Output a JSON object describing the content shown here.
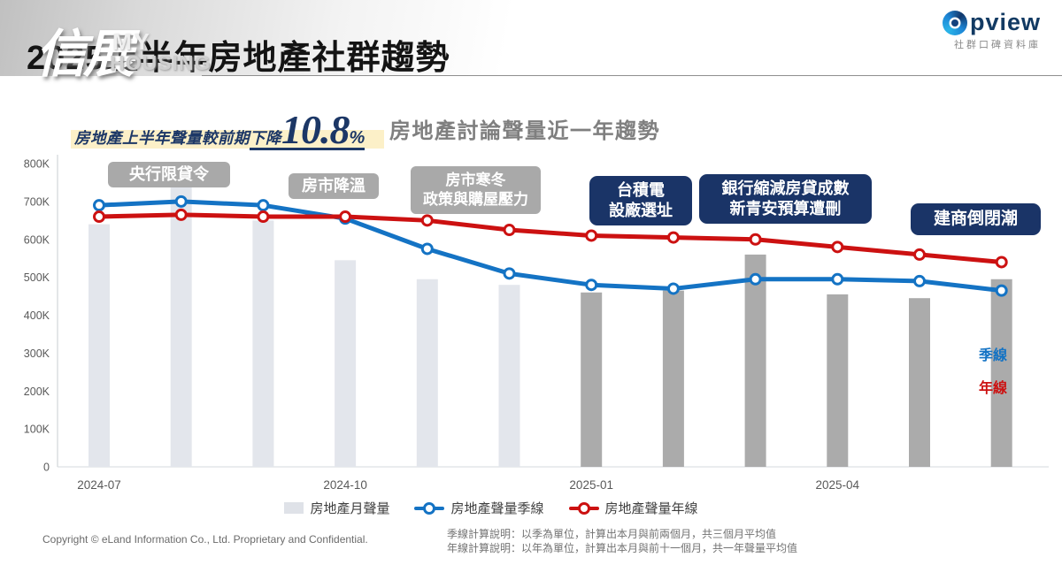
{
  "header": {
    "title": "2025上半年房地產社群趨勢",
    "watermark": {
      "calligraphy": "信展",
      "line1": "MY",
      "line2": "HOUSING"
    },
    "logo": {
      "brand_rest": "pview",
      "tagline": "社群口碑資料庫"
    }
  },
  "subtitle": {
    "prefix": "房地產上半年聲量較前期",
    "drop_word": "下降",
    "drop_value": "10.8",
    "percent_sign": "%"
  },
  "annotations": [
    {
      "style": "gray",
      "line1": "央行限貸令",
      "line2": ""
    },
    {
      "style": "gray",
      "line1": "房市降溫",
      "line2": ""
    },
    {
      "style": "gray",
      "line1": "房市寒冬",
      "line2": "政策與購屋壓力"
    },
    {
      "style": "navy",
      "line1": "台積電",
      "line2": "設廠選址"
    },
    {
      "style": "navy",
      "line1": "銀行縮減房貸成數",
      "line2": "新青安預算遭刪"
    },
    {
      "style": "navy",
      "line1": "建商倒閉潮",
      "line2": ""
    }
  ],
  "line_labels": {
    "quarter": "季線",
    "year": "年線"
  },
  "chart_data": {
    "type": "combo (bar + line)",
    "title": "房地產討論聲量近一年趨勢",
    "values_unit": "thousands (K mentions)",
    "ylim_k": [
      0,
      800
    ],
    "y_tick_step_k": 100,
    "grid": "off",
    "categories": [
      "2024-07",
      "2024-08",
      "2024-09",
      "2024-10",
      "2024-11",
      "2024-12",
      "2025-01",
      "2025-02",
      "2025-03",
      "2025-04",
      "2025-05",
      "2025-06"
    ],
    "x_ticks": [
      {
        "index": 0,
        "label": "2024-07"
      },
      {
        "index": 3,
        "label": "2024-10"
      },
      {
        "index": 6,
        "label": "2025-01"
      },
      {
        "index": 9,
        "label": "2025-04"
      }
    ],
    "bars": {
      "name": "房地產月聲量",
      "values_k": [
        640,
        740,
        650,
        545,
        495,
        480,
        460,
        465,
        560,
        455,
        445,
        495
      ],
      "color_light": "#e3e6ec",
      "color_dark": "#ababab",
      "dark_from_index": 6
    },
    "series": [
      {
        "name": "房地產聲量季線",
        "color": "#1473c4",
        "values_k": [
          690,
          700,
          690,
          655,
          575,
          510,
          480,
          470,
          495,
          495,
          490,
          465
        ]
      },
      {
        "name": "房地產聲量年線",
        "color": "#cc1111",
        "values_k": [
          660,
          665,
          660,
          660,
          650,
          625,
          610,
          605,
          600,
          580,
          560,
          540
        ]
      }
    ],
    "legend_position": "bottom-center"
  },
  "footer": {
    "copyright": "Copyright © eLand Information Co., Ltd. Proprietary and Confidential.",
    "note1": "季線計算說明：以季為單位，計算出本月與前兩個月，共三個月平均值",
    "note2": "年線計算說明：以年為單位，計算出本月與前十一個月，共一年聲量平均值"
  }
}
